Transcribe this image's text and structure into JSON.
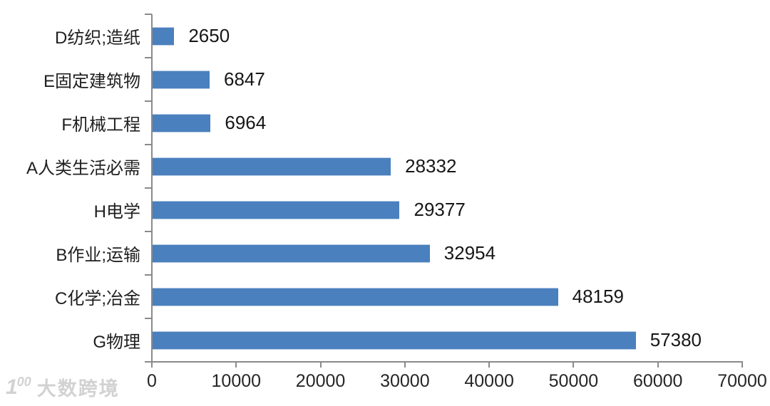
{
  "chart_data": {
    "type": "bar",
    "orientation": "horizontal",
    "title": "",
    "xlabel": "",
    "ylabel": "",
    "categories": [
      "D纺织;造纸",
      "E固定建筑物",
      "F机械工程",
      "A人类生活必需",
      "H电学",
      "B作业;运输",
      "C化学;冶金",
      "G物理"
    ],
    "values": [
      2650,
      6847,
      6964,
      28332,
      29377,
      32954,
      48159,
      57380
    ],
    "data_labels": [
      "2650",
      "6847",
      "6964",
      "28332",
      "29377",
      "32954",
      "48159",
      "57380"
    ],
    "x_ticks": [
      "0",
      "10000",
      "20000",
      "30000",
      "40000",
      "50000",
      "60000",
      "70000"
    ],
    "xlim": [
      0,
      70000
    ],
    "grid": false,
    "legend": null,
    "bar_color": "#4A80BD",
    "bar_edge_color": "#B5CBE5",
    "axis_color": "#8A8A8A",
    "text_color": "#1F1F1F"
  },
  "watermark": {
    "logo": "1",
    "logo_sup": "00",
    "text": "大数跨境",
    "color": "#D2D2D2"
  }
}
